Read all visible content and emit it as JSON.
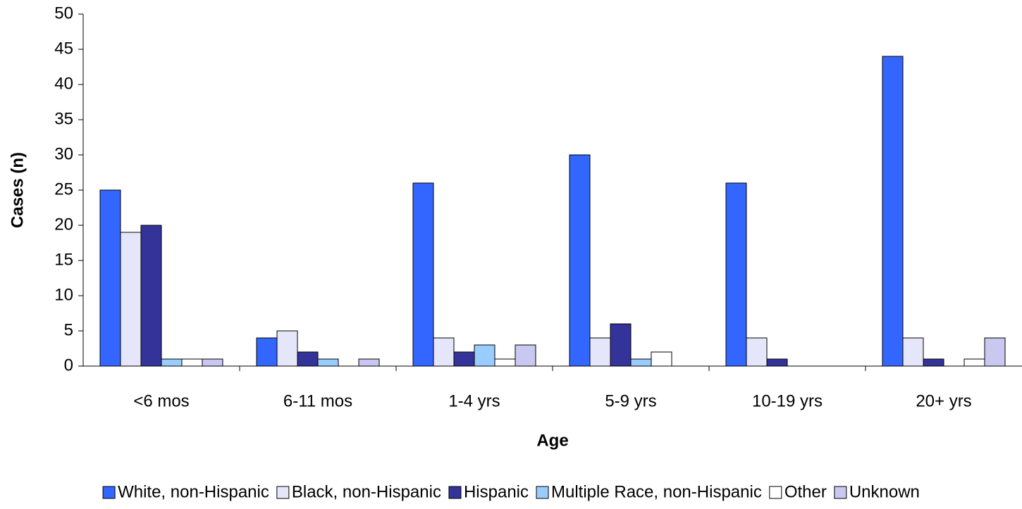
{
  "chart_data": {
    "type": "bar",
    "x_label": "Age",
    "y_label": "Cases (n)",
    "categories": [
      "<6 mos",
      "6-11 mos",
      "1-4 yrs",
      "5-9 yrs",
      "10-19 yrs",
      "20+ yrs"
    ],
    "series": [
      {
        "name": "White, non-Hispanic",
        "color": "#3366ff",
        "values": [
          25,
          4,
          26,
          30,
          26,
          44
        ]
      },
      {
        "name": "Black, non-Hispanic",
        "color": "#e6e6fa",
        "values": [
          19,
          5,
          4,
          4,
          4,
          4
        ]
      },
      {
        "name": "Hispanic",
        "color": "#333399",
        "values": [
          20,
          2,
          2,
          6,
          1,
          1
        ]
      },
      {
        "name": "Multiple Race, non-Hispanic",
        "color": "#99ccff",
        "values": [
          1,
          1,
          3,
          1,
          0,
          0
        ]
      },
      {
        "name": "Other",
        "color": "#ffffff",
        "values": [
          1,
          0,
          1,
          2,
          0,
          1
        ]
      },
      {
        "name": "Unknown",
        "color": "#c8c8f0",
        "values": [
          1,
          1,
          3,
          0,
          0,
          4
        ]
      }
    ],
    "ylim": [
      0,
      50
    ],
    "yticks": [
      0,
      5,
      10,
      15,
      20,
      25,
      30,
      35,
      40,
      45,
      50
    ],
    "grid": false,
    "legend": "bottom"
  }
}
